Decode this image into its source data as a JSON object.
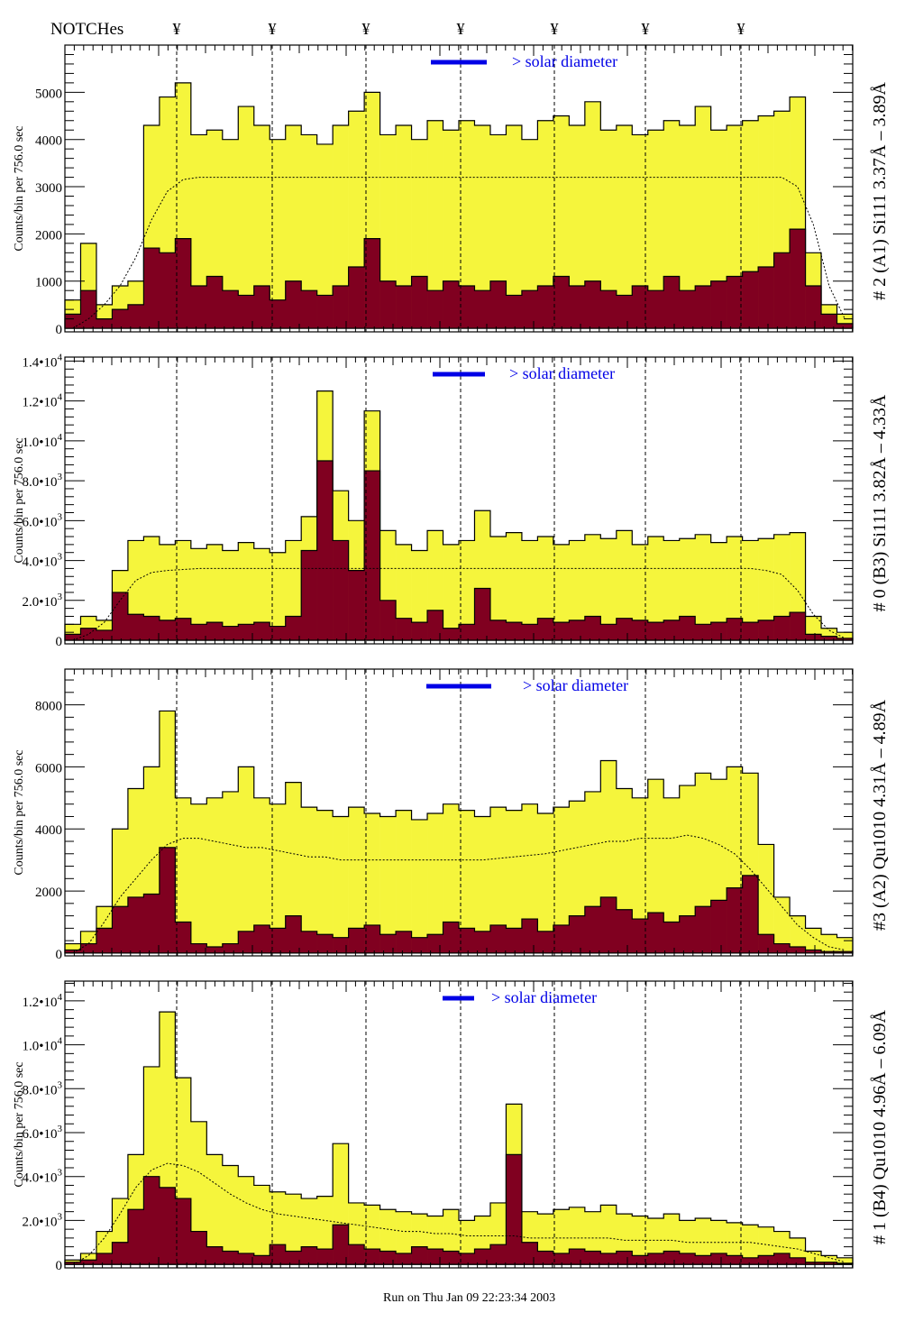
{
  "header": {
    "notches_label": "NOTCHes",
    "notch_symbol": "¥"
  },
  "footer": {
    "run_text": "Run on Thu Jan 09 22:23:34 2003"
  },
  "colors": {
    "total": "#f5f53c",
    "lines": "#800020",
    "legend_bar": "#0000e6",
    "legend_text": "#0000e6"
  },
  "chart_data": [
    {
      "type": "histogram",
      "title": "# 2 (A1) Si111  3.37Å – 3.89Å",
      "ylabel": "Counts/bin per    756.0 sec",
      "legend": "> solar diameter",
      "ylim": [
        -75,
        6000
      ],
      "yticks": [
        {
          "v": 0,
          "m": "0",
          "e": ""
        },
        {
          "v": 1000,
          "m": "1000",
          "e": ""
        },
        {
          "v": 2000,
          "m": "2000",
          "e": ""
        },
        {
          "v": 3000,
          "m": "3000",
          "e": ""
        },
        {
          "v": 4000,
          "m": "4000",
          "e": ""
        },
        {
          "v": 5000,
          "m": "5000",
          "e": ""
        }
      ],
      "series": [
        {
          "name": "total",
          "values": [
            600,
            1800,
            500,
            900,
            1000,
            4300,
            4900,
            5200,
            4100,
            4200,
            4000,
            4700,
            4300,
            4000,
            4300,
            4100,
            3900,
            4300,
            4600,
            5000,
            4100,
            4300,
            4000,
            4400,
            4200,
            4400,
            4300,
            4100,
            4300,
            4000,
            4400,
            4500,
            4300,
            4800,
            4200,
            4300,
            4100,
            4200,
            4400,
            4300,
            4700,
            4200,
            4300,
            4400,
            4500,
            4600,
            4900,
            1600,
            500,
            300
          ]
        },
        {
          "name": "lines",
          "values": [
            300,
            800,
            200,
            400,
            500,
            1700,
            1600,
            1900,
            900,
            1100,
            800,
            700,
            900,
            600,
            1000,
            800,
            700,
            900,
            1300,
            1900,
            1000,
            900,
            1100,
            800,
            1000,
            900,
            800,
            1000,
            700,
            800,
            900,
            1100,
            900,
            1000,
            800,
            700,
            900,
            800,
            1100,
            800,
            900,
            1000,
            1100,
            1200,
            1300,
            1600,
            2100,
            900,
            300,
            100
          ]
        },
        {
          "name": "model",
          "values": [
            0,
            200,
            500,
            900,
            1500,
            2300,
            2900,
            3150,
            3200,
            3200,
            3200,
            3200,
            3200,
            3200,
            3200,
            3200,
            3200,
            3200,
            3200,
            3200,
            3200,
            3200,
            3200,
            3200,
            3200,
            3200,
            3200,
            3200,
            3200,
            3200,
            3200,
            3200,
            3200,
            3200,
            3200,
            3200,
            3200,
            3200,
            3200,
            3200,
            3200,
            3200,
            3200,
            3200,
            3200,
            3200,
            3000,
            2200,
            900,
            200
          ]
        }
      ]
    },
    {
      "type": "histogram",
      "title": "# 0 (B3) Si111  3.82Å – 4.33Å",
      "ylabel": "Counts/bin per    756.0 sec",
      "legend": "> solar diameter",
      "ylim": [
        -180,
        14200
      ],
      "yticks": [
        {
          "v": 0,
          "m": "0",
          "e": ""
        },
        {
          "v": 2000,
          "m": "2.0•10",
          "e": "3"
        },
        {
          "v": 4000,
          "m": "4.0•10",
          "e": "3"
        },
        {
          "v": 6000,
          "m": "6.0•10",
          "e": "3"
        },
        {
          "v": 8000,
          "m": "8.0•10",
          "e": "3"
        },
        {
          "v": 10000,
          "m": "1.0•10",
          "e": "4"
        },
        {
          "v": 12000,
          "m": "1.2•10",
          "e": "4"
        },
        {
          "v": 14000,
          "m": "1.4•10",
          "e": "4"
        }
      ],
      "series": [
        {
          "name": "total",
          "values": [
            800,
            1200,
            1000,
            3500,
            5000,
            5200,
            4800,
            5000,
            4600,
            4800,
            4500,
            4900,
            4600,
            4400,
            5000,
            6200,
            12500,
            7500,
            6000,
            11500,
            5500,
            4800,
            4500,
            5500,
            4800,
            5000,
            6500,
            5200,
            5400,
            5000,
            5200,
            4800,
            5000,
            5300,
            5100,
            5500,
            4800,
            5200,
            5000,
            5100,
            5300,
            4900,
            5200,
            5000,
            5100,
            5300,
            5400,
            1200,
            600,
            400
          ]
        },
        {
          "name": "lines",
          "values": [
            300,
            600,
            500,
            2400,
            1300,
            1200,
            1000,
            1100,
            800,
            900,
            700,
            800,
            900,
            700,
            1200,
            4500,
            9000,
            5000,
            3500,
            8500,
            2000,
            1100,
            900,
            1500,
            600,
            800,
            2600,
            1000,
            900,
            800,
            1100,
            900,
            1000,
            1200,
            800,
            1100,
            1000,
            900,
            1000,
            1200,
            800,
            900,
            1100,
            900,
            1000,
            1200,
            1400,
            300,
            200,
            100
          ]
        },
        {
          "name": "model",
          "values": [
            0,
            300,
            900,
            2000,
            3000,
            3400,
            3500,
            3550,
            3600,
            3600,
            3600,
            3600,
            3600,
            3600,
            3600,
            3600,
            3600,
            3600,
            3600,
            3600,
            3600,
            3600,
            3600,
            3600,
            3600,
            3600,
            3600,
            3600,
            3600,
            3600,
            3600,
            3600,
            3600,
            3600,
            3600,
            3600,
            3600,
            3600,
            3600,
            3600,
            3600,
            3600,
            3600,
            3600,
            3500,
            3300,
            2500,
            1300,
            500,
            100
          ]
        }
      ]
    },
    {
      "type": "histogram",
      "title": "#3 (A2) Qu1010  4.31Å – 4.89Å",
      "ylabel": "Counts/bin per    756.0 sec",
      "legend": "> solar diameter",
      "ylim": [
        -90,
        9150
      ],
      "yticks": [
        {
          "v": 0,
          "m": "0",
          "e": ""
        },
        {
          "v": 2000,
          "m": "2000",
          "e": ""
        },
        {
          "v": 4000,
          "m": "4000",
          "e": ""
        },
        {
          "v": 6000,
          "m": "6000",
          "e": ""
        },
        {
          "v": 8000,
          "m": "8000",
          "e": ""
        }
      ],
      "series": [
        {
          "name": "total",
          "values": [
            300,
            700,
            1500,
            4000,
            5300,
            6000,
            7800,
            5000,
            4800,
            5000,
            5200,
            6000,
            5000,
            4800,
            5500,
            4700,
            4600,
            4400,
            4700,
            4500,
            4400,
            4600,
            4300,
            4500,
            4800,
            4600,
            4400,
            4700,
            4600,
            4800,
            4500,
            4700,
            4900,
            5200,
            6200,
            5300,
            5000,
            5600,
            5000,
            5400,
            5800,
            5600,
            6000,
            5800,
            3500,
            1800,
            1200,
            800,
            600,
            500
          ]
        },
        {
          "name": "lines",
          "values": [
            100,
            300,
            800,
            1500,
            1800,
            1900,
            3400,
            1000,
            300,
            200,
            300,
            700,
            900,
            800,
            1200,
            700,
            600,
            500,
            800,
            900,
            600,
            700,
            500,
            600,
            1000,
            800,
            700,
            900,
            800,
            1100,
            700,
            900,
            1200,
            1500,
            1800,
            1400,
            1100,
            1300,
            1000,
            1200,
            1500,
            1700,
            2100,
            2500,
            600,
            300,
            200,
            100,
            50,
            50
          ]
        },
        {
          "name": "model",
          "values": [
            0,
            300,
            1000,
            1800,
            2400,
            3000,
            3500,
            3700,
            3700,
            3600,
            3500,
            3400,
            3400,
            3300,
            3200,
            3100,
            3100,
            3000,
            3000,
            3000,
            3000,
            3000,
            3000,
            3000,
            3000,
            3000,
            3000,
            3050,
            3100,
            3150,
            3200,
            3300,
            3400,
            3500,
            3600,
            3600,
            3700,
            3700,
            3700,
            3800,
            3700,
            3500,
            3200,
            2700,
            2100,
            1500,
            900,
            500,
            200,
            100
          ]
        }
      ]
    },
    {
      "type": "histogram",
      "title": "# 1 (B4) Qu1010 4.96Å – 6.09Å",
      "ylabel": "Counts/bin per    756.0 sec",
      "legend": "> solar diameter",
      "ylim": [
        -160,
        12900
      ],
      "yticks": [
        {
          "v": 0,
          "m": "0",
          "e": ""
        },
        {
          "v": 2000,
          "m": "2.0•10",
          "e": "3"
        },
        {
          "v": 4000,
          "m": "4.0•10",
          "e": "3"
        },
        {
          "v": 6000,
          "m": "6.0•10",
          "e": "3"
        },
        {
          "v": 8000,
          "m": "8.0•10",
          "e": "3"
        },
        {
          "v": 10000,
          "m": "1.0•10",
          "e": "4"
        },
        {
          "v": 12000,
          "m": "1.2•10",
          "e": "4"
        }
      ],
      "series": [
        {
          "name": "total",
          "values": [
            200,
            500,
            1500,
            3000,
            5000,
            9000,
            11500,
            8500,
            6500,
            5000,
            4500,
            4000,
            3600,
            3300,
            3200,
            3000,
            3100,
            5500,
            2800,
            2700,
            2500,
            2400,
            2300,
            2200,
            2500,
            2000,
            2200,
            2800,
            7300,
            2400,
            2300,
            2500,
            2600,
            2400,
            2700,
            2300,
            2200,
            2100,
            2300,
            2000,
            2100,
            2000,
            1900,
            1800,
            1700,
            1500,
            1200,
            600,
            400,
            300
          ]
        },
        {
          "name": "lines",
          "values": [
            100,
            200,
            500,
            1000,
            2500,
            4000,
            3500,
            3000,
            1500,
            800,
            600,
            500,
            400,
            900,
            600,
            800,
            700,
            1800,
            900,
            700,
            600,
            500,
            800,
            700,
            600,
            500,
            700,
            900,
            5000,
            1000,
            600,
            500,
            700,
            600,
            500,
            600,
            400,
            500,
            600,
            500,
            400,
            500,
            400,
            300,
            400,
            500,
            300,
            100,
            100,
            50
          ]
        },
        {
          "name": "model",
          "values": [
            0,
            400,
            1200,
            2300,
            3500,
            4300,
            4600,
            4500,
            4200,
            3700,
            3200,
            2800,
            2500,
            2300,
            2200,
            2100,
            2000,
            1900,
            1800,
            1700,
            1600,
            1500,
            1500,
            1400,
            1400,
            1300,
            1300,
            1300,
            1300,
            1200,
            1200,
            1200,
            1200,
            1200,
            1200,
            1100,
            1100,
            1100,
            1100,
            1000,
            1000,
            1000,
            1000,
            1000,
            900,
            800,
            700,
            500,
            300,
            100
          ]
        }
      ]
    }
  ]
}
